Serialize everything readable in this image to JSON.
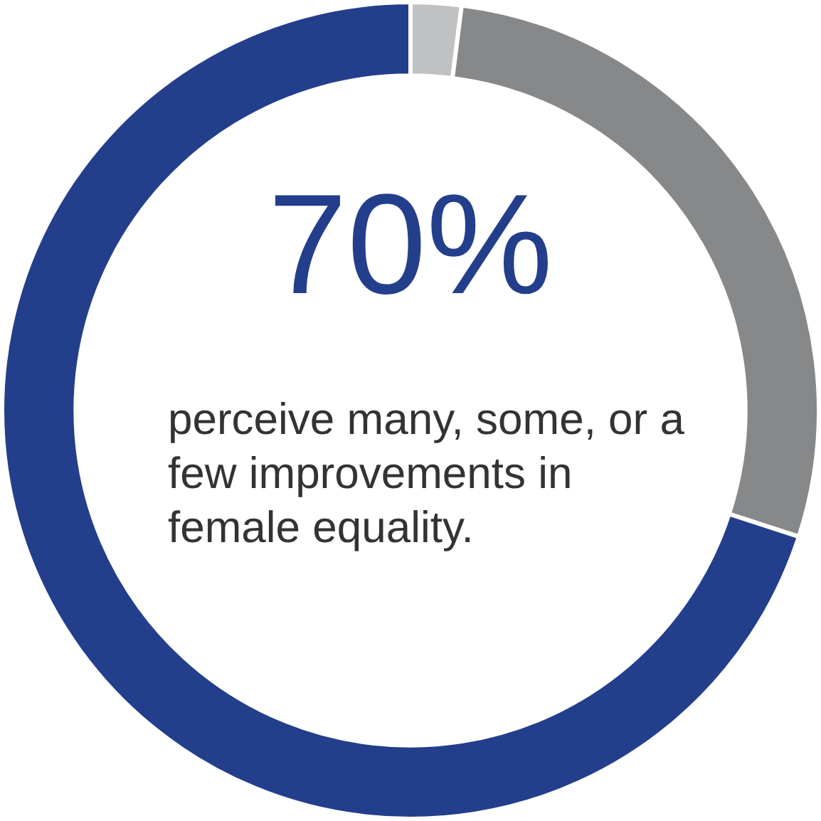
{
  "chart_data": {
    "type": "donut",
    "categories": [
      null,
      null,
      null
    ],
    "values": [
      2,
      28,
      70
    ],
    "colors": [
      "#c0c1c3",
      "#87888a",
      "#233e8b"
    ],
    "value_labels": [
      null,
      null,
      "70%"
    ],
    "legend": false,
    "annotations": [
      "perceive many, some, or a few improvements in female equality."
    ]
  }
}
